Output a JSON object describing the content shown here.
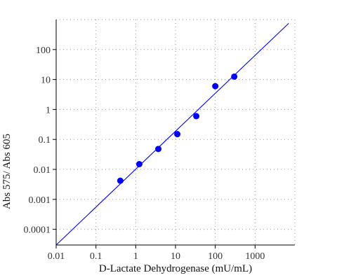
{
  "chart_data": {
    "type": "scatter",
    "xlabel": "D-Lactate Dehydrogenase (mU/mL)",
    "ylabel": "Abs 575/ Abs 605",
    "x_scale": "log",
    "y_scale": "log",
    "xlim": [
      0.01,
      10000
    ],
    "ylim": [
      3e-05,
      1000
    ],
    "x_ticks": [
      {
        "value": 0.01,
        "label": "0.01"
      },
      {
        "value": 0.1,
        "label": "0.1"
      },
      {
        "value": 1,
        "label": "1"
      },
      {
        "value": 10,
        "label": "10"
      },
      {
        "value": 100,
        "label": "100"
      },
      {
        "value": 1000,
        "label": "1000"
      }
    ],
    "y_ticks": [
      {
        "value": 0.0001,
        "label": "0.0001"
      },
      {
        "value": 0.001,
        "label": "0.001"
      },
      {
        "value": 0.01,
        "label": "0.01"
      },
      {
        "value": 0.1,
        "label": "0.1"
      },
      {
        "value": 1,
        "label": "1"
      },
      {
        "value": 10,
        "label": "10"
      },
      {
        "value": 100,
        "label": "100"
      }
    ],
    "grid": true,
    "series": [
      {
        "type": "scatter",
        "color": "#0000ff",
        "points": [
          {
            "x": 0.41,
            "y": 0.0042
          },
          {
            "x": 1.23,
            "y": 0.015
          },
          {
            "x": 3.7,
            "y": 0.048
          },
          {
            "x": 11.1,
            "y": 0.15
          },
          {
            "x": 33.3,
            "y": 0.6
          },
          {
            "x": 100,
            "y": 6
          },
          {
            "x": 300,
            "y": 12.5
          }
        ]
      },
      {
        "type": "line",
        "color": "#0000ff",
        "points": [
          {
            "x": 0.01,
            "y": 3e-05
          },
          {
            "x": 7000,
            "y": 750
          }
        ]
      }
    ]
  }
}
